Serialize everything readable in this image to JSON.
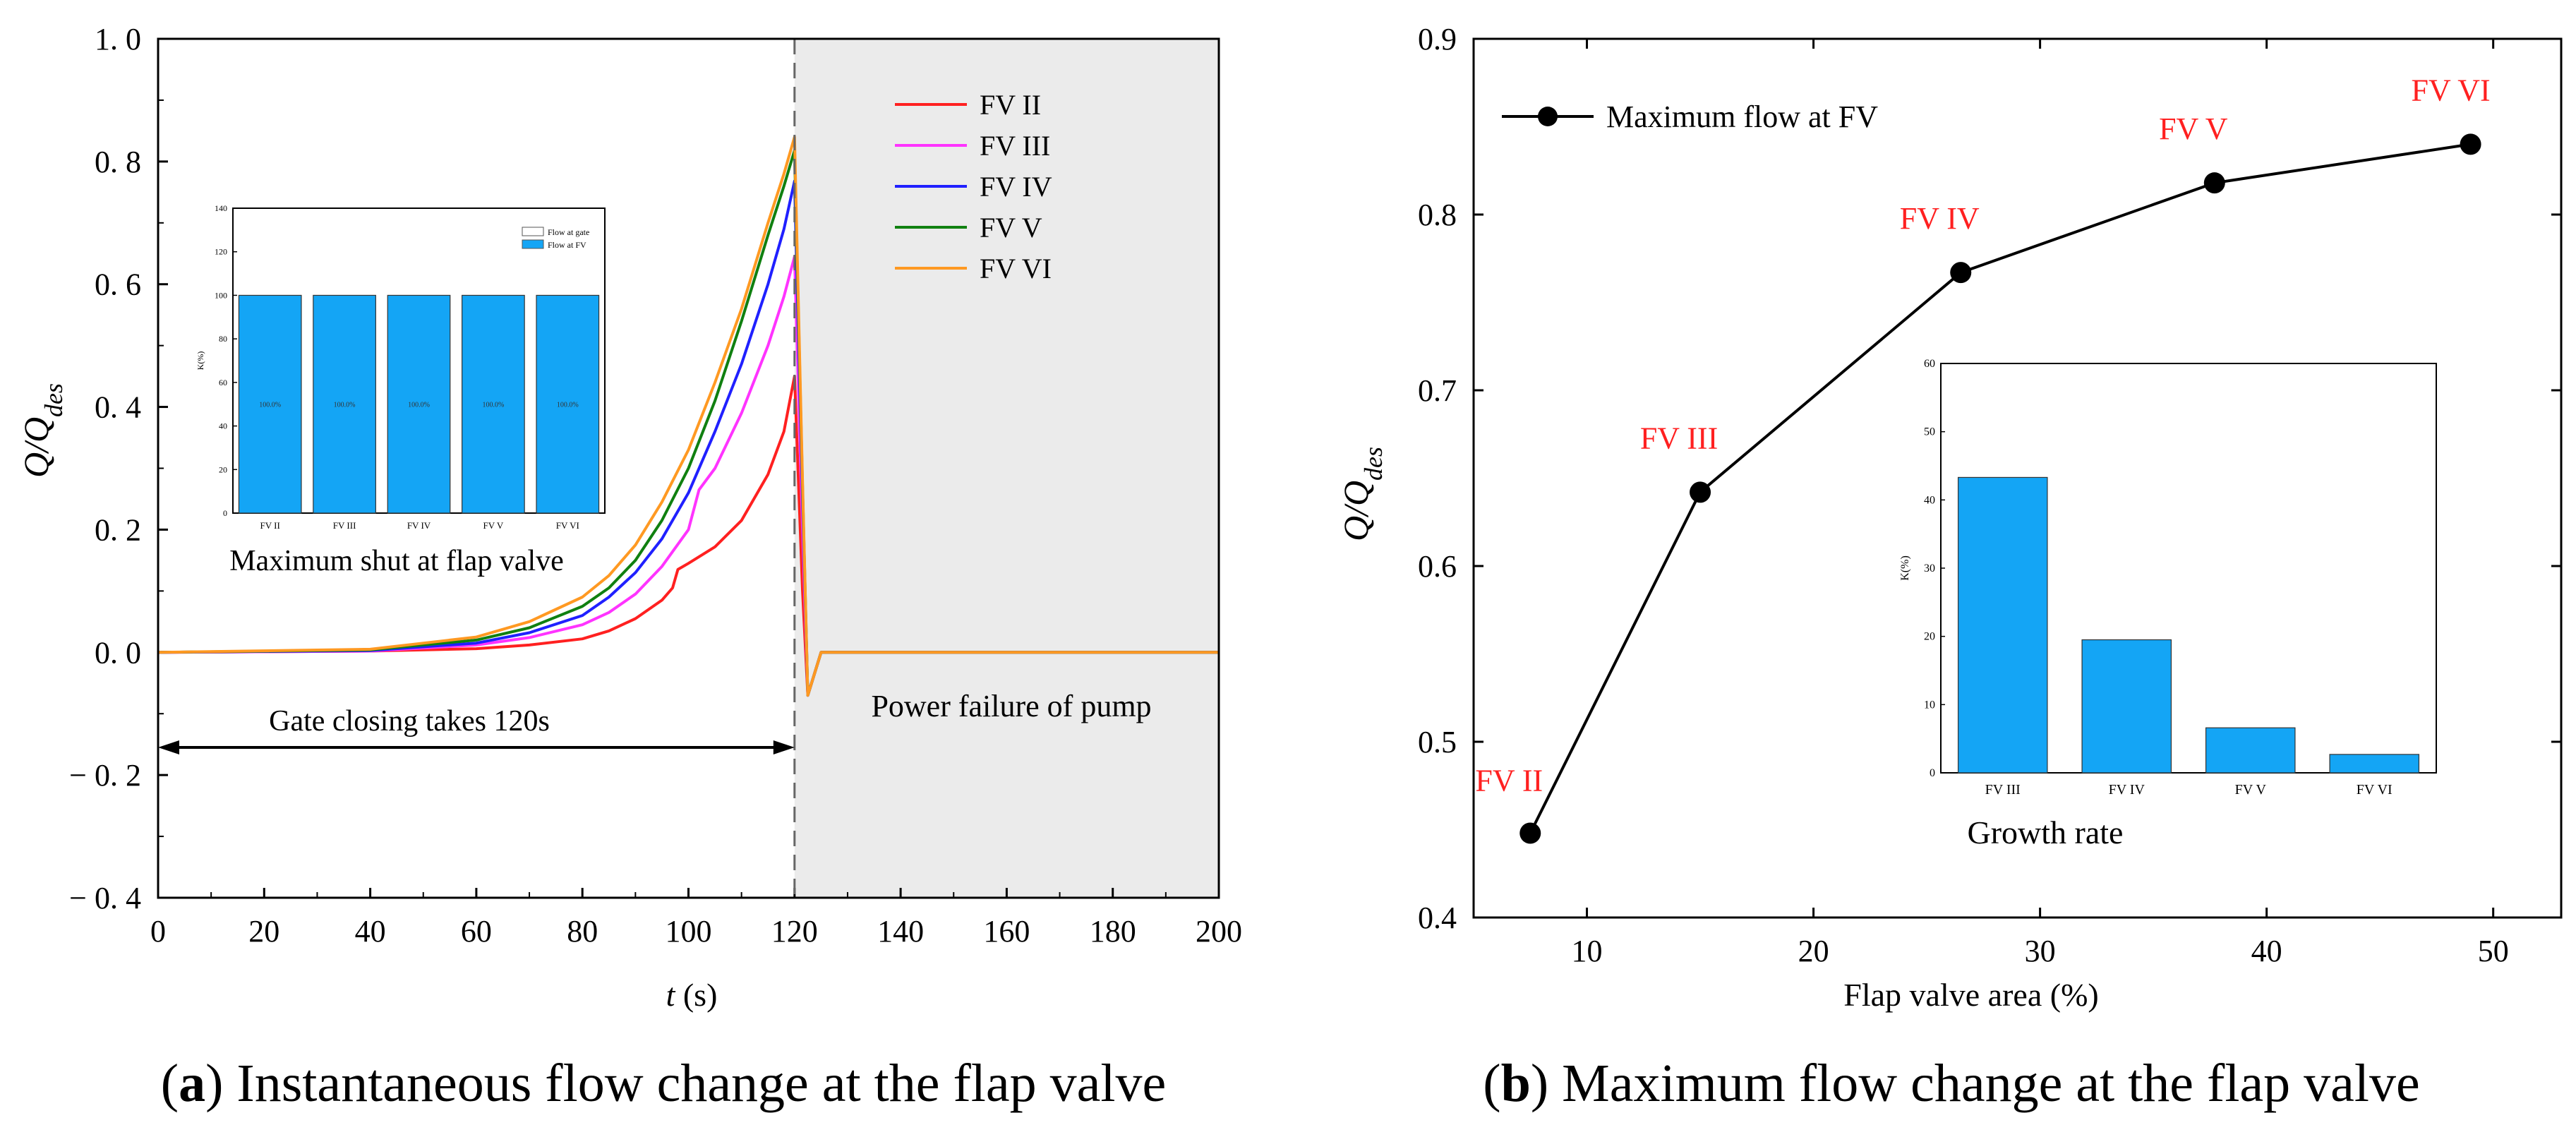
{
  "colors": {
    "FV II": "#ff2020",
    "FV III": "#ff33ff",
    "FV IV": "#2020ff",
    "FV V": "#108010",
    "FV VI": "#ff9922",
    "bar": "#14a5f5",
    "shade": "#ebebeb",
    "label_red": "#ff2020"
  },
  "chart_data": [
    {
      "id": "panel-a",
      "type": "line",
      "title": "",
      "xlabel": "t (s)",
      "ylabel": "Q/Q_des",
      "xlim": [
        0,
        200
      ],
      "ylim": [
        -0.4,
        1.0
      ],
      "xticks": [
        0,
        20,
        40,
        60,
        80,
        100,
        120,
        140,
        160,
        180,
        200
      ],
      "yticks": [
        -0.4,
        -0.2,
        0.0,
        0.2,
        0.4,
        0.6,
        0.8,
        1.0
      ],
      "ytick_labels": [
        "− 0. 4",
        "− 0. 2",
        "0. 0",
        "0. 2",
        "0. 4",
        "0. 6",
        "0. 8",
        "1. 0"
      ],
      "legend_position": "top-right",
      "series": [
        {
          "name": "FV  II",
          "key": "FV II",
          "x": [
            0,
            40,
            60,
            70,
            80,
            85,
            90,
            95,
            97,
            98,
            100,
            105,
            110,
            115,
            118,
            120,
            121.5,
            122.5,
            125,
            200
          ],
          "y": [
            0,
            0.002,
            0.006,
            0.012,
            0.022,
            0.035,
            0.055,
            0.085,
            0.105,
            0.135,
            0.145,
            0.172,
            0.215,
            0.29,
            0.36,
            0.45,
            0.1,
            -0.07,
            0,
            0
          ]
        },
        {
          "name": "FV III",
          "key": "FV III",
          "x": [
            0,
            40,
            60,
            70,
            80,
            85,
            90,
            95,
            100,
            102,
            105,
            110,
            115,
            118,
            120,
            121.5,
            122.5,
            125,
            200
          ],
          "y": [
            0,
            0.002,
            0.012,
            0.024,
            0.045,
            0.065,
            0.095,
            0.14,
            0.2,
            0.265,
            0.3,
            0.39,
            0.5,
            0.58,
            0.645,
            0.2,
            -0.07,
            0,
            0
          ]
        },
        {
          "name": "FV IV",
          "key": "FV IV",
          "x": [
            0,
            40,
            60,
            70,
            80,
            85,
            90,
            95,
            100,
            105,
            110,
            115,
            118,
            120,
            121.5,
            122.5,
            125,
            200
          ],
          "y": [
            0,
            0.003,
            0.015,
            0.032,
            0.06,
            0.09,
            0.13,
            0.185,
            0.26,
            0.36,
            0.47,
            0.6,
            0.69,
            0.768,
            0.25,
            -0.07,
            0,
            0
          ]
        },
        {
          "name": "FV  V",
          "key": "FV V",
          "x": [
            0,
            40,
            60,
            70,
            80,
            85,
            90,
            95,
            100,
            105,
            110,
            115,
            118,
            120,
            121.5,
            122.5,
            125,
            200
          ],
          "y": [
            0,
            0.004,
            0.02,
            0.04,
            0.075,
            0.105,
            0.15,
            0.215,
            0.3,
            0.41,
            0.54,
            0.68,
            0.76,
            0.818,
            0.27,
            -0.07,
            0,
            0
          ]
        },
        {
          "name": "FV VI",
          "key": "FV VI",
          "x": [
            0,
            40,
            60,
            70,
            80,
            85,
            90,
            95,
            100,
            105,
            110,
            115,
            118,
            120,
            121.5,
            122.5,
            125,
            200
          ],
          "y": [
            0,
            0.005,
            0.025,
            0.05,
            0.09,
            0.125,
            0.175,
            0.245,
            0.33,
            0.44,
            0.56,
            0.7,
            0.78,
            0.84,
            0.28,
            -0.07,
            0,
            0
          ]
        }
      ],
      "dashed_vline_x": 120,
      "shaded_region_x": [
        120,
        200
      ],
      "annotations": {
        "gate": "Gate closing takes 120s",
        "gate_arrow_y": -0.155,
        "gate_arrow_x": [
          0,
          120
        ],
        "power": "Power failure of pump",
        "inset_caption": "Maximum shut at flap valve"
      },
      "inset": {
        "type": "bar",
        "categories": [
          "FV II",
          "FV III",
          "FV IV",
          "FV V",
          "FV VI"
        ],
        "values": [
          100,
          100,
          100,
          100,
          100
        ],
        "bar_labels": [
          "100.0%",
          "100.0%",
          "100.0%",
          "100.0%",
          "100.0%"
        ],
        "ylabel": "K(%)",
        "ylim": [
          0,
          140
        ],
        "yticks": [
          0,
          20,
          40,
          60,
          80,
          100,
          120,
          140
        ],
        "legend": [
          "Flow at gate",
          "Flow at FV"
        ]
      }
    },
    {
      "id": "panel-b",
      "type": "line",
      "title": "",
      "xlabel": "Flap valve area (%)",
      "ylabel": "Q/Q_des",
      "xlim": [
        5,
        53
      ],
      "ylim": [
        0.4,
        0.9
      ],
      "xticks": [
        10,
        20,
        30,
        40,
        50
      ],
      "yticks": [
        0.4,
        0.5,
        0.6,
        0.7,
        0.8,
        0.9
      ],
      "legend_position": "top-left",
      "series": [
        {
          "name": "Maximum flow at FV",
          "x": [
            7.5,
            15,
            26.5,
            37.7,
            49
          ],
          "y": [
            0.448,
            0.642,
            0.767,
            0.818,
            0.84
          ],
          "point_labels": [
            "FV II",
            "FV III",
            "FV IV",
            "FV V",
            "FV VI"
          ]
        }
      ],
      "inset": {
        "type": "bar",
        "title": "Growth rate",
        "categories": [
          "FV III",
          "FV IV",
          "FV V",
          "FV VI"
        ],
        "values": [
          43.3,
          19.5,
          6.6,
          2.7
        ],
        "ylabel": "K(%)",
        "ylim": [
          0,
          60
        ],
        "yticks": [
          0,
          10,
          20,
          30,
          40,
          50,
          60
        ]
      }
    }
  ],
  "captions": {
    "a_letter": "a",
    "a_text": "Instantaneous flow change at the flap valve",
    "b_letter": "b",
    "b_text": "Maximum flow change at the flap valve"
  }
}
